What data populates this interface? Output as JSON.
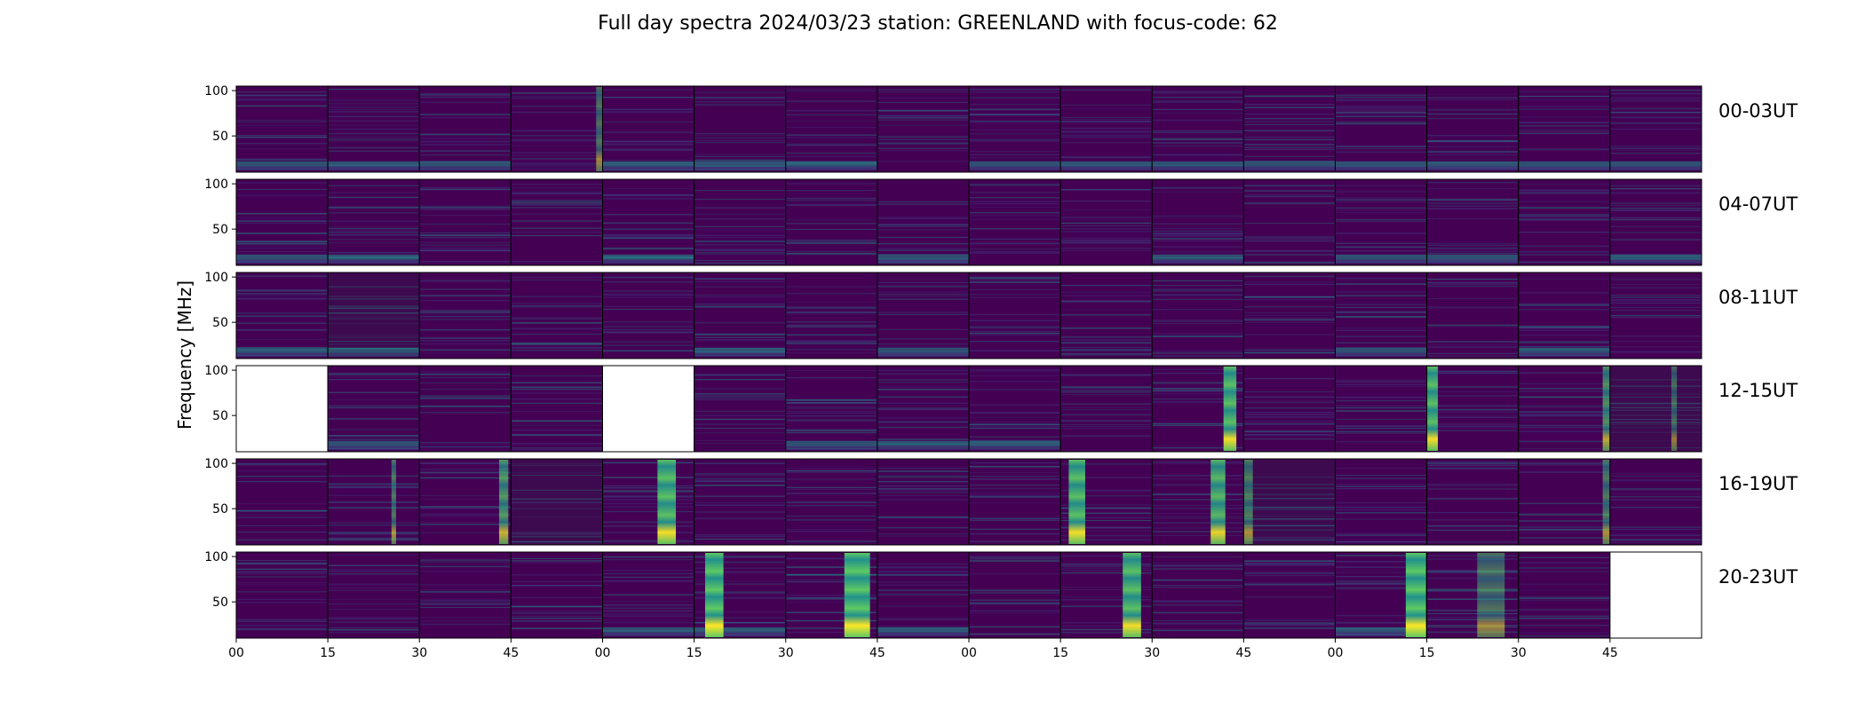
{
  "chart_data": {
    "type": "heatmap",
    "title": "Full day spectra 2024/03/23 station: GREENLAND with focus-code: 62",
    "ylabel": "Frequency [MHz]",
    "xlabel": "",
    "yticks": [
      "100",
      "50"
    ],
    "xticks": [
      "00",
      "15",
      "30",
      "45",
      "00",
      "15",
      "30",
      "45",
      "00",
      "15",
      "30",
      "45",
      "00",
      "15",
      "30",
      "45"
    ],
    "ylim": [
      10,
      105
    ],
    "colormap": "viridis",
    "colors": {
      "background": "#440154",
      "mid": "#3b528b",
      "teal": "#21918c",
      "green": "#5ec962",
      "high": "#fde725",
      "blank": "#ffffff"
    },
    "panels_per_row": 16,
    "panel_minutes": 15,
    "rows": [
      {
        "label": "00-03UT",
        "missing": [],
        "dark": [],
        "bursts": [
          {
            "panel": 3,
            "pos": 0.97,
            "width": 0.07,
            "strength": 0.55
          }
        ],
        "low_band": [
          0,
          1,
          2,
          4,
          5,
          6,
          8,
          9,
          10,
          11,
          12,
          13,
          14,
          15
        ]
      },
      {
        "label": "04-07UT",
        "missing": [],
        "dark": [],
        "bursts": [],
        "low_band": [
          0,
          1,
          4,
          7,
          10,
          12,
          13,
          15
        ]
      },
      {
        "label": "08-11UT",
        "missing": [],
        "dark": [
          1
        ],
        "bursts": [],
        "low_band": [
          0,
          1,
          5,
          7,
          12,
          14
        ]
      },
      {
        "label": "12-15UT",
        "missing": [
          0,
          4
        ],
        "dark": [
          15
        ],
        "bursts": [
          {
            "panel": 10,
            "pos": 0.85,
            "width": 0.14,
            "strength": 0.95
          },
          {
            "panel": 13,
            "pos": 0.05,
            "width": 0.12,
            "strength": 0.95
          },
          {
            "panel": 14,
            "pos": 0.97,
            "width": 0.08,
            "strength": 0.7
          },
          {
            "panel": 15,
            "pos": 0.7,
            "width": 0.06,
            "strength": 0.5
          }
        ],
        "low_band": [
          1,
          6,
          7,
          8
        ]
      },
      {
        "label": "16-19UT",
        "missing": [],
        "dark": [
          3,
          11
        ],
        "bursts": [
          {
            "panel": 1,
            "pos": 0.72,
            "width": 0.05,
            "strength": 0.6
          },
          {
            "panel": 2,
            "pos": 0.92,
            "width": 0.1,
            "strength": 0.75
          },
          {
            "panel": 4,
            "pos": 0.7,
            "width": 0.2,
            "strength": 0.95
          },
          {
            "panel": 9,
            "pos": 0.18,
            "width": 0.18,
            "strength": 0.95
          },
          {
            "panel": 10,
            "pos": 0.72,
            "width": 0.16,
            "strength": 0.9
          },
          {
            "panel": 11,
            "pos": 0.05,
            "width": 0.1,
            "strength": 0.6
          },
          {
            "panel": 14,
            "pos": 0.97,
            "width": 0.08,
            "strength": 0.6
          }
        ],
        "low_band": []
      },
      {
        "label": "20-23UT",
        "missing": [
          15
        ],
        "dark": [],
        "bursts": [
          {
            "panel": 5,
            "pos": 0.22,
            "width": 0.2,
            "strength": 1.0
          },
          {
            "panel": 6,
            "pos": 0.78,
            "width": 0.28,
            "strength": 1.0
          },
          {
            "panel": 9,
            "pos": 0.78,
            "width": 0.2,
            "strength": 0.95
          },
          {
            "panel": 12,
            "pos": 0.88,
            "width": 0.22,
            "strength": 1.0
          },
          {
            "panel": 13,
            "pos": 0.7,
            "width": 0.3,
            "strength": 0.55
          }
        ],
        "low_band": [
          4,
          5,
          7,
          12
        ]
      }
    ]
  }
}
